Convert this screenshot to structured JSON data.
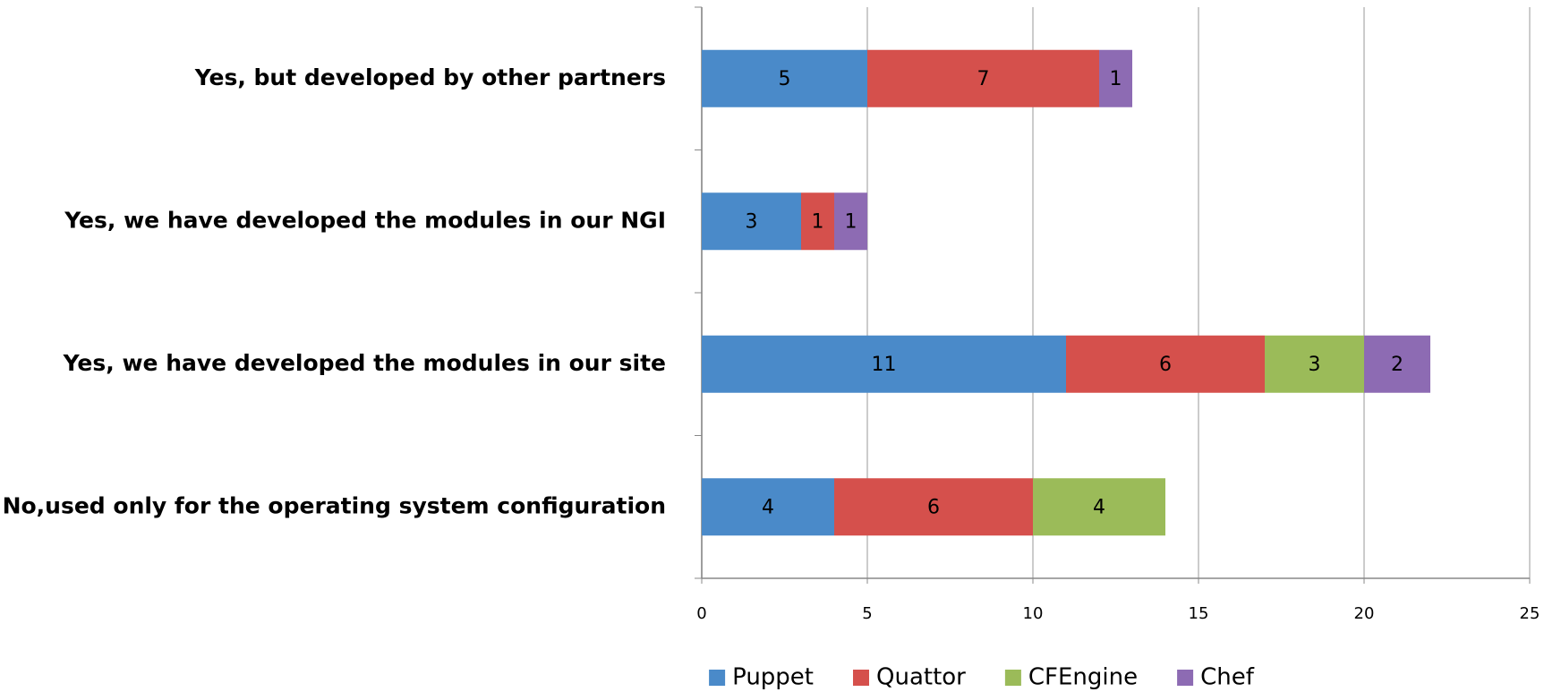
{
  "chart_data": {
    "type": "stacked-bar-horizontal",
    "categories": [
      "Yes, but developed by other partners",
      "Yes, we have developed the modules in our NGI",
      "Yes, we have developed the modules in our site",
      "No,used only for the operating system configuration"
    ],
    "series": [
      {
        "name": "Puppet",
        "color": "#4a8ac9",
        "values": [
          5,
          3,
          11,
          4
        ]
      },
      {
        "name": "Quattor",
        "color": "#d5504c",
        "values": [
          7,
          1,
          6,
          6
        ]
      },
      {
        "name": "CFEngine",
        "color": "#9bbb59",
        "values": [
          null,
          null,
          3,
          4
        ]
      },
      {
        "name": "Chef",
        "color": "#8d6bb3",
        "values": [
          1,
          1,
          2,
          null
        ]
      }
    ],
    "xlim": [
      0,
      25
    ],
    "xticks": [
      0,
      5,
      10,
      15,
      20,
      25
    ],
    "grid": true,
    "legend": "bottom"
  }
}
